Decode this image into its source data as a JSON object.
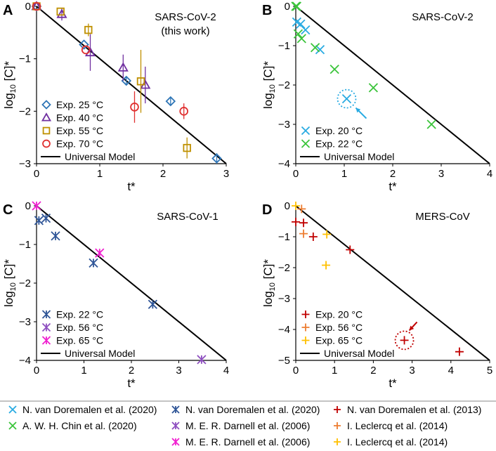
{
  "chart_data": [
    {
      "type": "scatter",
      "panel_label": "A",
      "title_lines": [
        "SARS-CoV-2",
        "(this work)"
      ],
      "xlabel": "t*",
      "ylabel": "log10 [C]*",
      "xlim": [
        0,
        3
      ],
      "ylim": [
        -3,
        0
      ],
      "xticks": [
        0,
        1,
        2,
        3
      ],
      "yticks": [
        0,
        -1,
        -2,
        -3
      ],
      "legend_position": "bottom-left",
      "model": {
        "name": "Universal Model",
        "line": [
          [
            0,
            0
          ],
          [
            3,
            -3
          ]
        ]
      },
      "series": [
        {
          "name": "Exp. 25 °C",
          "marker": "diamond",
          "color": "#2e75b6",
          "points": [
            [
              0,
              0
            ],
            [
              0.75,
              -0.73
            ],
            [
              1.42,
              -1.42
            ],
            [
              2.12,
              -1.81
            ],
            [
              2.85,
              -2.9
            ]
          ],
          "errors": [
            0,
            0,
            0.08,
            0.08,
            0.1
          ]
        },
        {
          "name": "Exp. 40 °C",
          "marker": "triangle",
          "color": "#7030a0",
          "points": [
            [
              0,
              0
            ],
            [
              0.4,
              -0.15
            ],
            [
              0.85,
              -0.88
            ],
            [
              1.37,
              -1.17
            ],
            [
              1.72,
              -1.5
            ]
          ],
          "errors": [
            0,
            0.12,
            0.35,
            0.25,
            0.35
          ]
        },
        {
          "name": "Exp. 55 °C",
          "marker": "square",
          "color": "#bf9000",
          "points": [
            [
              0,
              0
            ],
            [
              0.38,
              -0.1
            ],
            [
              0.82,
              -0.45
            ],
            [
              1.65,
              -1.43
            ],
            [
              2.38,
              -2.7
            ]
          ],
          "errors": [
            0,
            0,
            0.12,
            0.6,
            0.2
          ]
        },
        {
          "name": "Exp. 70 °C",
          "marker": "circle",
          "color": "#e03030",
          "points": [
            [
              0,
              0
            ],
            [
              0.78,
              -0.83
            ],
            [
              1.55,
              -1.92
            ],
            [
              2.33,
              -2.0
            ]
          ],
          "errors": [
            0,
            0,
            0.3,
            0.15
          ]
        }
      ]
    },
    {
      "type": "scatter",
      "panel_label": "B",
      "title_lines": [
        "SARS-CoV-2"
      ],
      "xlabel": "t*",
      "ylabel": "log10 [C]*",
      "xlim": [
        0,
        4
      ],
      "ylim": [
        -4,
        0
      ],
      "xticks": [
        0,
        1,
        2,
        3,
        4
      ],
      "yticks": [
        0,
        -1,
        -2,
        -3,
        -4
      ],
      "legend_position": "bottom-left",
      "model": {
        "name": "Universal Model",
        "line": [
          [
            0,
            0
          ],
          [
            4,
            -4
          ]
        ]
      },
      "series": [
        {
          "name": "Exp. 20 °C",
          "marker": "x",
          "color": "#29abe2",
          "points": [
            [
              0.02,
              -0.4
            ],
            [
              0.1,
              -0.45
            ],
            [
              0.2,
              -0.6
            ],
            [
              0.5,
              -1.1
            ],
            [
              1.05,
              -2.35
            ]
          ]
        },
        {
          "name": "Exp. 22 °C",
          "marker": "x",
          "color": "#3bc43b",
          "points": [
            [
              0,
              0
            ],
            [
              0.02,
              0
            ],
            [
              0.05,
              -0.7
            ],
            [
              0.12,
              -0.82
            ],
            [
              0.4,
              -1.05
            ],
            [
              0.8,
              -1.6
            ],
            [
              1.6,
              -2.07
            ],
            [
              2.8,
              -3.0
            ]
          ]
        }
      ],
      "highlight": {
        "x": 1.05,
        "y": -2.35,
        "color": "#29abe2"
      }
    },
    {
      "type": "scatter",
      "panel_label": "C",
      "title_lines": [
        "SARS-CoV-1"
      ],
      "xlabel": "t*",
      "ylabel": "log10 [C]*",
      "xlim": [
        0,
        4
      ],
      "ylim": [
        -4,
        0
      ],
      "xticks": [
        0,
        1,
        2,
        3,
        4
      ],
      "yticks": [
        0,
        -1,
        -2,
        -3,
        -4
      ],
      "legend_position": "bottom-left",
      "model": {
        "name": "Universal Model",
        "line": [
          [
            0,
            0
          ],
          [
            4,
            -4
          ]
        ]
      },
      "series": [
        {
          "name": "Exp. 22 °C",
          "marker": "asterisk",
          "color": "#2f5597",
          "points": [
            [
              0.05,
              -0.38
            ],
            [
              0.2,
              -0.32
            ],
            [
              0.4,
              -0.78
            ],
            [
              1.2,
              -1.48
            ],
            [
              2.45,
              -2.55
            ]
          ]
        },
        {
          "name": "Exp. 56 °C",
          "marker": "asterisk",
          "color": "#8e4fc0",
          "points": [
            [
              3.48,
              -3.98
            ]
          ]
        },
        {
          "name": "Exp. 65 °C",
          "marker": "asterisk",
          "color": "#f020d0",
          "points": [
            [
              0,
              0
            ],
            [
              1.33,
              -1.22
            ]
          ]
        }
      ]
    },
    {
      "type": "scatter",
      "panel_label": "D",
      "title_lines": [
        "MERS-CoV"
      ],
      "xlabel": "t*",
      "ylabel": "log10 [C]*",
      "xlim": [
        0,
        5
      ],
      "ylim": [
        -5,
        0
      ],
      "xticks": [
        0,
        1,
        2,
        3,
        4,
        5
      ],
      "yticks": [
        0,
        -1,
        -2,
        -3,
        -4,
        -5
      ],
      "legend_position": "bottom-left",
      "model": {
        "name": "Universal Model",
        "line": [
          [
            0,
            0
          ],
          [
            5,
            -5
          ]
        ]
      },
      "series": [
        {
          "name": "Exp. 20 °C",
          "marker": "plus",
          "color": "#c00000",
          "points": [
            [
              0,
              -0.52
            ],
            [
              0.2,
              -0.55
            ],
            [
              0.45,
              -1.0
            ],
            [
              1.4,
              -1.42
            ],
            [
              2.8,
              -4.35
            ],
            [
              4.22,
              -4.72
            ]
          ]
        },
        {
          "name": "Exp. 56 °C",
          "marker": "plus",
          "color": "#ed7d31",
          "points": [
            [
              0.15,
              -0.1
            ],
            [
              0.2,
              -0.9
            ]
          ]
        },
        {
          "name": "Exp. 65 °C",
          "marker": "plus",
          "color": "#ffc000",
          "points": [
            [
              0,
              0
            ],
            [
              0.8,
              -0.92
            ],
            [
              0.78,
              -1.92
            ]
          ]
        }
      ],
      "highlight": {
        "x": 2.8,
        "y": -4.35,
        "color": "#c00000"
      }
    }
  ],
  "sources": [
    {
      "text": "N. van Doremalen et al. (2020)",
      "marker": "x",
      "color": "#29abe2"
    },
    {
      "text": "N. van Doremalen et al. (2020)",
      "marker": "asterisk",
      "color": "#2f5597"
    },
    {
      "text": "N. van Doremalen et al. (2013)",
      "marker": "plus",
      "color": "#c00000"
    },
    {
      "text": "A. W. H. Chin et al. (2020)",
      "marker": "x",
      "color": "#3bc43b"
    },
    {
      "text": "M. E. R. Darnell et al. (2006)",
      "marker": "asterisk",
      "color": "#8e4fc0"
    },
    {
      "text": "I. Leclercq et al. (2014)",
      "marker": "plus",
      "color": "#ed7d31"
    },
    {
      "text": "",
      "marker": "none",
      "color": "#ffffff"
    },
    {
      "text": "M. E. R. Darnell et al. (2006)",
      "marker": "asterisk",
      "color": "#f020d0"
    },
    {
      "text": "I. Leclercq et al. (2014)",
      "marker": "plus",
      "color": "#ffc000"
    }
  ]
}
